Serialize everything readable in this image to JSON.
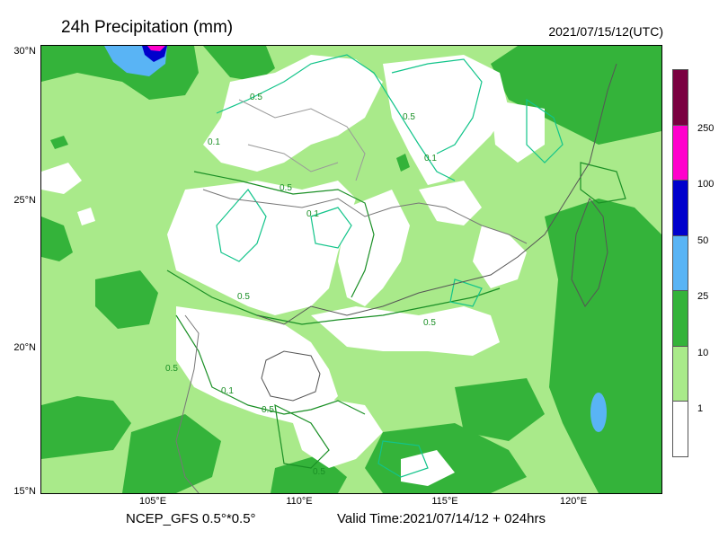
{
  "header": {
    "title": "24h Precipitation (mm)",
    "timestamp": "2021/07/15/12(UTC)"
  },
  "axes": {
    "lat_labels": [
      "30°N",
      "25°N",
      "20°N",
      "15°N"
    ],
    "lon_labels": [
      "105°E",
      "110°E",
      "115°E",
      "120°E"
    ]
  },
  "footer": {
    "model": "NCEP_GFS 0.5°*0.5°",
    "valid_time": "Valid Time:2021/07/14/12 + 024hrs"
  },
  "legend": {
    "labels": [
      "250",
      "100",
      "50",
      "25",
      "10",
      "1"
    ],
    "colors": [
      "#7a0040",
      "#ff00cc",
      "#0000cc",
      "#59b4f5",
      "#34b33a",
      "#a9ea8a",
      "#ffffff"
    ]
  },
  "contours": {
    "labels": [
      "0.5",
      "0.1"
    ]
  },
  "map": {
    "projection": "lat-lon",
    "lat_range": [
      15,
      30
    ],
    "lon_range": [
      101,
      124
    ]
  }
}
